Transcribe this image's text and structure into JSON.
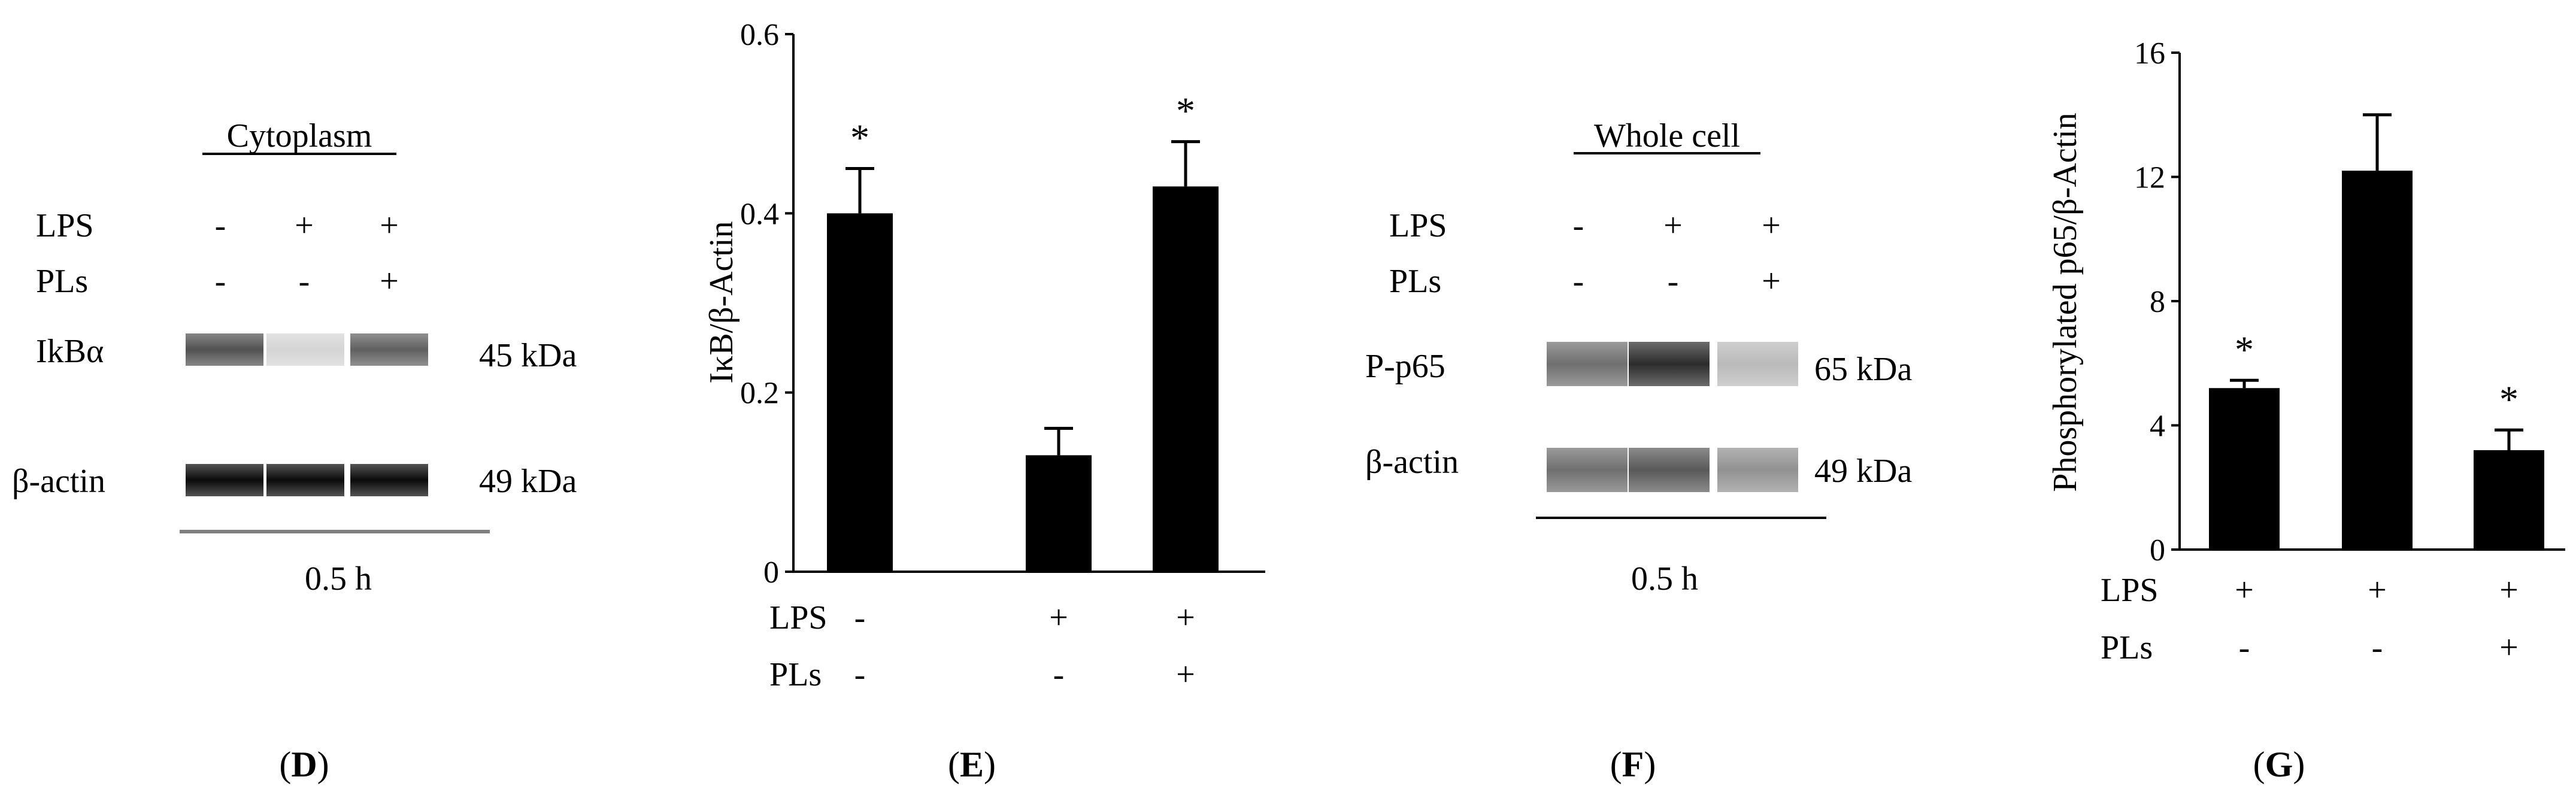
{
  "panels": {
    "D": {
      "letter": "D",
      "section_label": "Cytoplasm",
      "row_labels": [
        "LPS",
        "PLs"
      ],
      "lane_signs": [
        [
          "-",
          "+",
          "+"
        ],
        [
          "-",
          "-",
          "+"
        ]
      ],
      "bands": [
        {
          "name": "IkBα",
          "size": "45 kDa",
          "intensities": [
            0.68,
            0.1,
            0.62
          ]
        },
        {
          "name": "β-actin",
          "size": "49 kDa",
          "intensities": [
            1.0,
            1.0,
            1.0
          ]
        }
      ],
      "time": "0.5 h"
    },
    "F": {
      "letter": "F",
      "section_label": "Whole  cell",
      "row_labels": [
        "LPS",
        "PLs"
      ],
      "lane_signs": [
        [
          "-",
          "+",
          "+"
        ],
        [
          "-",
          "-",
          "+"
        ]
      ],
      "bands": [
        {
          "name": "P-p65",
          "size": "65 kDa",
          "intensities": [
            0.55,
            0.85,
            0.22
          ]
        },
        {
          "name": "β-actin",
          "size": "49 kDa",
          "intensities": [
            0.55,
            0.65,
            0.4
          ]
        }
      ],
      "time": "0.5 h"
    }
  },
  "chart_data": [
    {
      "panel": "E",
      "letter": "E",
      "type": "bar",
      "ylabel": "IκB/β-Actin",
      "ylim": [
        0,
        0.6
      ],
      "yticks": [
        0,
        0.2,
        0.4,
        0.6
      ],
      "ytick_labels": [
        "0",
        "0.2",
        "0.4",
        "0.6"
      ],
      "row_labels": [
        "LPS",
        "PLs"
      ],
      "categories": [
        [
          "-",
          "-"
        ],
        [
          "+",
          "-"
        ],
        [
          "+",
          "+"
        ]
      ],
      "values": [
        0.4,
        0.13,
        0.43
      ],
      "errors": [
        0.05,
        0.03,
        0.05
      ],
      "annotations": [
        "*",
        "",
        "*"
      ]
    },
    {
      "panel": "G",
      "letter": "G",
      "type": "bar",
      "ylabel": "Phosphorylated p65/β-Actin",
      "ylim": [
        0,
        16
      ],
      "yticks": [
        0,
        4,
        8,
        12,
        16
      ],
      "ytick_labels": [
        "0",
        "4",
        "8",
        "12",
        "16"
      ],
      "row_labels": [
        "LPS",
        "PLs"
      ],
      "categories": [
        [
          "+",
          "-"
        ],
        [
          "+",
          "-"
        ],
        [
          "+",
          "+"
        ]
      ],
      "values": [
        5.2,
        12.2,
        3.2
      ],
      "errors": [
        0.25,
        1.8,
        0.65
      ],
      "annotations": [
        "*",
        "",
        "*"
      ]
    }
  ]
}
